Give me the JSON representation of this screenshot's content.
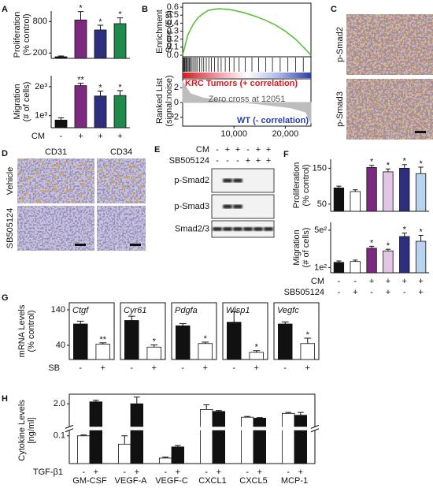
{
  "chart_data": [
    {
      "type": "bar",
      "panel": "A",
      "ylabel": [
        "Proliferation",
        "(% control)"
      ],
      "values": [
        130,
        830,
        640,
        760
      ],
      "errors": [
        15,
        160,
        90,
        110
      ],
      "annotations": [
        null,
        "*",
        "*",
        "*"
      ],
      "colors": [
        "#111111",
        "#7b2a7f",
        "#2b2f7e",
        "#1f8a4c"
      ],
      "ylim": [
        100,
        1000
      ],
      "yticks": [
        200,
        800
      ]
    },
    {
      "type": "bar",
      "log": true,
      "ylabel": [
        "Migration",
        "(# of cells)"
      ],
      "values": [
        900,
        2050,
        1600,
        1620
      ],
      "errors": [
        50,
        120,
        200,
        200
      ],
      "annotations": [
        null,
        "**",
        "*",
        "*"
      ],
      "colors": [
        "#111111",
        "#7b2a7f",
        "#2b2f7e",
        "#1f8a4c"
      ],
      "ylim": [
        750,
        2600
      ],
      "yticks": [
        {
          "value": 1000,
          "label": "1e³"
        },
        {
          "value": 2000,
          "label": "2e³"
        }
      ],
      "conditions": [
        {
          "name": "CM",
          "values": [
            "-",
            "+",
            "+",
            "+"
          ]
        }
      ]
    },
    {
      "type": "line",
      "panel": "B",
      "xlim": [
        0,
        25000
      ],
      "xticks": [
        {
          "value": 10000,
          "label": "10,000"
        },
        {
          "value": 20000,
          "label": "20,000"
        }
      ],
      "top": {
        "ylabel": [
          "Enrichment",
          "Score (ES)"
        ],
        "ylim": [
          -0.02,
          0.65
        ],
        "yticks": [
          {
            "value": 0,
            "label": "0.0"
          },
          0.1,
          0.2,
          0.3,
          0.4,
          0.5,
          0.6
        ],
        "color": "#5cbf3a",
        "x": [
          0,
          1000,
          2000,
          3000,
          4000,
          5000,
          6000,
          7000,
          8000,
          9000,
          10000,
          12000,
          14000,
          16000,
          18000,
          20000,
          22000,
          24000,
          25000
        ],
        "values": [
          0,
          0.25,
          0.38,
          0.47,
          0.52,
          0.56,
          0.57,
          0.58,
          0.575,
          0.57,
          0.56,
          0.53,
          0.49,
          0.44,
          0.38,
          0.3,
          0.2,
          0.07,
          0
        ]
      },
      "hits": [
        150,
        300,
        420,
        600,
        750,
        900,
        1100,
        1300,
        1500,
        1700,
        2000,
        2300,
        2600,
        2900,
        3300,
        3700,
        4100,
        4600,
        5100,
        5600,
        6200,
        6900,
        7500,
        8300,
        9100,
        10000,
        11000,
        12200,
        13500,
        14800,
        16200,
        17500,
        19000,
        20500,
        22000,
        23500
      ],
      "pos_label": "KRC Tumors (+ correlation)",
      "neg_label": "WT (- correlation)",
      "bottom": {
        "ylabel": [
          "Ranked List",
          "(signal:noise)"
        ],
        "ylim": [
          -3.2,
          3.2
        ],
        "yticks": [
          2,
          0,
          -2
        ],
        "color": "#bdbdbd",
        "x": [
          0,
          0,
          1500,
          4000,
          8000,
          12051,
          16000,
          21000,
          24000,
          25000,
          25000
        ],
        "values": [
          0,
          2.8,
          1.2,
          0.6,
          0.25,
          0,
          -0.3,
          -0.7,
          -1.3,
          -2.8,
          0
        ],
        "annotation": "Zero cross at 12051"
      }
    },
    {
      "type": "bar",
      "panel": "F",
      "ylabel": [
        "Proliferation",
        "(% control)"
      ],
      "values": [
        95,
        85,
        152,
        140,
        150,
        135
      ],
      "errors": [
        5,
        5,
        6,
        8,
        10,
        18
      ],
      "annotations": [
        null,
        null,
        "*",
        "*",
        "*",
        "*"
      ],
      "colors": [
        "#111111",
        "#ffffff",
        "#7b2a7f",
        "#e3c5e6",
        "#2b2f7e",
        "#b9d3ef"
      ],
      "ylim": [
        30,
        175
      ],
      "yticks": [
        50,
        150
      ]
    },
    {
      "type": "bar",
      "log": true,
      "ylabel": [
        "Migration",
        "(# of cells)"
      ],
      "values": [
        125,
        130,
        230,
        205,
        380,
        310
      ],
      "errors": [
        8,
        8,
        20,
        15,
        60,
        90
      ],
      "annotations": [
        null,
        null,
        "*",
        "*",
        "*",
        "*"
      ],
      "colors": [
        "#111111",
        "#ffffff",
        "#7b2a7f",
        "#e3c5e6",
        "#2b2f7e",
        "#b9d3ef"
      ],
      "ylim": [
        80,
        700
      ],
      "yticks": [
        {
          "value": 500,
          "label": "5e²"
        },
        {
          "value": 100,
          "label": "1e²"
        }
      ],
      "conditions": [
        {
          "name": "CM",
          "values": [
            "-",
            "-",
            "+",
            "+",
            "+",
            "+"
          ]
        },
        {
          "name": "SB505124",
          "values": [
            "-",
            "+",
            "-",
            "+",
            "-",
            "+"
          ]
        }
      ]
    },
    {
      "type": "bar",
      "panel": "G",
      "frame": true,
      "ylabel": [
        "mRNA Levels",
        "(% control)"
      ],
      "ylim": [
        0,
        160
      ],
      "yticks": [
        40,
        140
      ],
      "colors": [
        "#111111",
        "#ffffff"
      ],
      "panels": [
        {
          "title": "Ctgf",
          "values": [
            100,
            43
          ],
          "errors": [
            8,
            4
          ],
          "annotations": [
            null,
            "**"
          ]
        },
        {
          "title": "Cyr61",
          "values": [
            110,
            35
          ],
          "errors": [
            12,
            6
          ],
          "annotations": [
            null,
            "*"
          ]
        },
        {
          "title": "Pdgfa",
          "values": [
            95,
            45
          ],
          "errors": [
            6,
            4
          ],
          "annotations": [
            null,
            "*"
          ]
        },
        {
          "title": "Wisp1",
          "values": [
            105,
            20
          ],
          "errors": [
            30,
            5
          ],
          "annotations": [
            null,
            "*"
          ]
        },
        {
          "title": "Vegfc",
          "values": [
            100,
            45
          ],
          "errors": [
            6,
            15
          ],
          "annotations": [
            null,
            "*"
          ]
        }
      ],
      "conditions": [
        {
          "name": "SB",
          "values": [
            "-",
            "+"
          ]
        }
      ]
    },
    {
      "type": "bar",
      "panel": "H",
      "frame": true,
      "ylabel": [
        "Cytokine Levels",
        "[ng/ml]"
      ],
      "ylim": [
        0,
        2.5
      ],
      "axis_break": [
        0.12,
        0.8
      ],
      "yticks": [
        0.1,
        {
          "value": 2,
          "label": "2.0"
        }
      ],
      "colors": [
        "#ffffff",
        "#111111"
      ],
      "categories": [
        "GM-CSF",
        "VEGF-A",
        "VEGF-C",
        "CXCL1",
        "CXCL5",
        "MCP-1"
      ],
      "values": [
        [
          0.1,
          2.1
        ],
        [
          0.07,
          2.0
        ],
        [
          0.02,
          0.06
        ],
        [
          1.7,
          1.6
        ],
        [
          1.3,
          1.25
        ],
        [
          1.5,
          1.4
        ]
      ],
      "errors": [
        [
          0.003,
          0.08
        ],
        [
          0.03,
          0.35
        ],
        [
          0.003,
          0.005
        ],
        [
          0.25,
          0.05
        ],
        [
          0.04,
          0.03
        ],
        [
          0.05,
          0.15
        ]
      ],
      "conditions": [
        {
          "name": "TGF-β1",
          "values": [
            "-",
            "+"
          ]
        }
      ]
    }
  ],
  "panels": {
    "C": {
      "panel": "C",
      "labels": [
        "p-Smad2",
        "p-Smad3"
      ]
    },
    "D": {
      "panel": "D",
      "columns": [
        "CD31",
        "CD34"
      ],
      "rows": [
        "Vehicle",
        "SB505124"
      ]
    },
    "E": {
      "panel": "E",
      "conditions": [
        {
          "name": "CM",
          "values": [
            "-",
            "+",
            "+",
            "-",
            "+",
            "+"
          ]
        },
        {
          "name": "SB505124",
          "values": [
            "-",
            "-",
            "-",
            "+",
            "+",
            "+"
          ]
        }
      ],
      "rows": [
        "p-Smad2",
        "p-Smad3",
        "Smad2/3"
      ]
    }
  }
}
